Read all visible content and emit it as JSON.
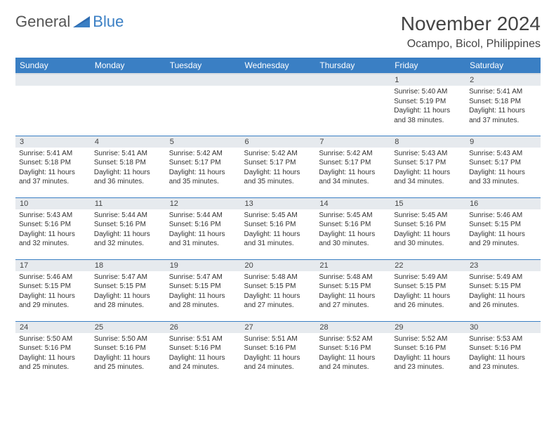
{
  "brand": {
    "general": "General",
    "blue": "Blue"
  },
  "title": "November 2024",
  "location": "Ocampo, Bicol, Philippines",
  "colors": {
    "accent": "#3a7fc4",
    "daynum_bg": "#e6eaee",
    "text": "#333333",
    "bg": "#ffffff"
  },
  "weekdays": [
    "Sunday",
    "Monday",
    "Tuesday",
    "Wednesday",
    "Thursday",
    "Friday",
    "Saturday"
  ],
  "grid": [
    [
      null,
      null,
      null,
      null,
      null,
      {
        "n": "1",
        "sr": "5:40 AM",
        "ss": "5:19 PM",
        "dl": "11 hours and 38 minutes."
      },
      {
        "n": "2",
        "sr": "5:41 AM",
        "ss": "5:18 PM",
        "dl": "11 hours and 37 minutes."
      }
    ],
    [
      {
        "n": "3",
        "sr": "5:41 AM",
        "ss": "5:18 PM",
        "dl": "11 hours and 37 minutes."
      },
      {
        "n": "4",
        "sr": "5:41 AM",
        "ss": "5:18 PM",
        "dl": "11 hours and 36 minutes."
      },
      {
        "n": "5",
        "sr": "5:42 AM",
        "ss": "5:17 PM",
        "dl": "11 hours and 35 minutes."
      },
      {
        "n": "6",
        "sr": "5:42 AM",
        "ss": "5:17 PM",
        "dl": "11 hours and 35 minutes."
      },
      {
        "n": "7",
        "sr": "5:42 AM",
        "ss": "5:17 PM",
        "dl": "11 hours and 34 minutes."
      },
      {
        "n": "8",
        "sr": "5:43 AM",
        "ss": "5:17 PM",
        "dl": "11 hours and 34 minutes."
      },
      {
        "n": "9",
        "sr": "5:43 AM",
        "ss": "5:17 PM",
        "dl": "11 hours and 33 minutes."
      }
    ],
    [
      {
        "n": "10",
        "sr": "5:43 AM",
        "ss": "5:16 PM",
        "dl": "11 hours and 32 minutes."
      },
      {
        "n": "11",
        "sr": "5:44 AM",
        "ss": "5:16 PM",
        "dl": "11 hours and 32 minutes."
      },
      {
        "n": "12",
        "sr": "5:44 AM",
        "ss": "5:16 PM",
        "dl": "11 hours and 31 minutes."
      },
      {
        "n": "13",
        "sr": "5:45 AM",
        "ss": "5:16 PM",
        "dl": "11 hours and 31 minutes."
      },
      {
        "n": "14",
        "sr": "5:45 AM",
        "ss": "5:16 PM",
        "dl": "11 hours and 30 minutes."
      },
      {
        "n": "15",
        "sr": "5:45 AM",
        "ss": "5:16 PM",
        "dl": "11 hours and 30 minutes."
      },
      {
        "n": "16",
        "sr": "5:46 AM",
        "ss": "5:15 PM",
        "dl": "11 hours and 29 minutes."
      }
    ],
    [
      {
        "n": "17",
        "sr": "5:46 AM",
        "ss": "5:15 PM",
        "dl": "11 hours and 29 minutes."
      },
      {
        "n": "18",
        "sr": "5:47 AM",
        "ss": "5:15 PM",
        "dl": "11 hours and 28 minutes."
      },
      {
        "n": "19",
        "sr": "5:47 AM",
        "ss": "5:15 PM",
        "dl": "11 hours and 28 minutes."
      },
      {
        "n": "20",
        "sr": "5:48 AM",
        "ss": "5:15 PM",
        "dl": "11 hours and 27 minutes."
      },
      {
        "n": "21",
        "sr": "5:48 AM",
        "ss": "5:15 PM",
        "dl": "11 hours and 27 minutes."
      },
      {
        "n": "22",
        "sr": "5:49 AM",
        "ss": "5:15 PM",
        "dl": "11 hours and 26 minutes."
      },
      {
        "n": "23",
        "sr": "5:49 AM",
        "ss": "5:15 PM",
        "dl": "11 hours and 26 minutes."
      }
    ],
    [
      {
        "n": "24",
        "sr": "5:50 AM",
        "ss": "5:16 PM",
        "dl": "11 hours and 25 minutes."
      },
      {
        "n": "25",
        "sr": "5:50 AM",
        "ss": "5:16 PM",
        "dl": "11 hours and 25 minutes."
      },
      {
        "n": "26",
        "sr": "5:51 AM",
        "ss": "5:16 PM",
        "dl": "11 hours and 24 minutes."
      },
      {
        "n": "27",
        "sr": "5:51 AM",
        "ss": "5:16 PM",
        "dl": "11 hours and 24 minutes."
      },
      {
        "n": "28",
        "sr": "5:52 AM",
        "ss": "5:16 PM",
        "dl": "11 hours and 24 minutes."
      },
      {
        "n": "29",
        "sr": "5:52 AM",
        "ss": "5:16 PM",
        "dl": "11 hours and 23 minutes."
      },
      {
        "n": "30",
        "sr": "5:53 AM",
        "ss": "5:16 PM",
        "dl": "11 hours and 23 minutes."
      }
    ]
  ],
  "labels": {
    "sunrise": "Sunrise:",
    "sunset": "Sunset:",
    "daylight": "Daylight:"
  }
}
